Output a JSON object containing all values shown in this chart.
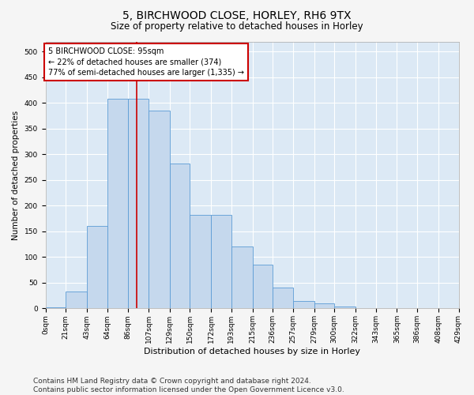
{
  "title": "5, BIRCHWOOD CLOSE, HORLEY, RH6 9TX",
  "subtitle": "Size of property relative to detached houses in Horley",
  "xlabel": "Distribution of detached houses by size in Horley",
  "ylabel": "Number of detached properties",
  "bar_color": "#c5d8ed",
  "bar_edge_color": "#5b9bd5",
  "background_color": "#dce9f5",
  "grid_color": "#ffffff",
  "property_line_x": 95,
  "property_line_color": "#cc0000",
  "annotation_text": "5 BIRCHWOOD CLOSE: 95sqm\n← 22% of detached houses are smaller (374)\n77% of semi-detached houses are larger (1,335) →",
  "annotation_box_color": "#ffffff",
  "annotation_box_edge_color": "#cc0000",
  "bin_edges": [
    0,
    21,
    43,
    64,
    86,
    107,
    129,
    150,
    172,
    193,
    215,
    236,
    257,
    279,
    300,
    322,
    343,
    365,
    386,
    408,
    429
  ],
  "bin_counts": [
    2,
    33,
    160,
    408,
    408,
    385,
    283,
    183,
    183,
    120,
    85,
    40,
    15,
    10,
    3,
    1,
    0,
    1,
    0,
    1
  ],
  "ylim": [
    0,
    520
  ],
  "yticks": [
    0,
    50,
    100,
    150,
    200,
    250,
    300,
    350,
    400,
    450,
    500
  ],
  "footer_text": "Contains HM Land Registry data © Crown copyright and database right 2024.\nContains public sector information licensed under the Open Government Licence v3.0.",
  "footer_fontsize": 6.5,
  "title_fontsize": 10,
  "subtitle_fontsize": 8.5,
  "xlabel_fontsize": 8,
  "ylabel_fontsize": 7.5,
  "tick_fontsize": 6.5
}
